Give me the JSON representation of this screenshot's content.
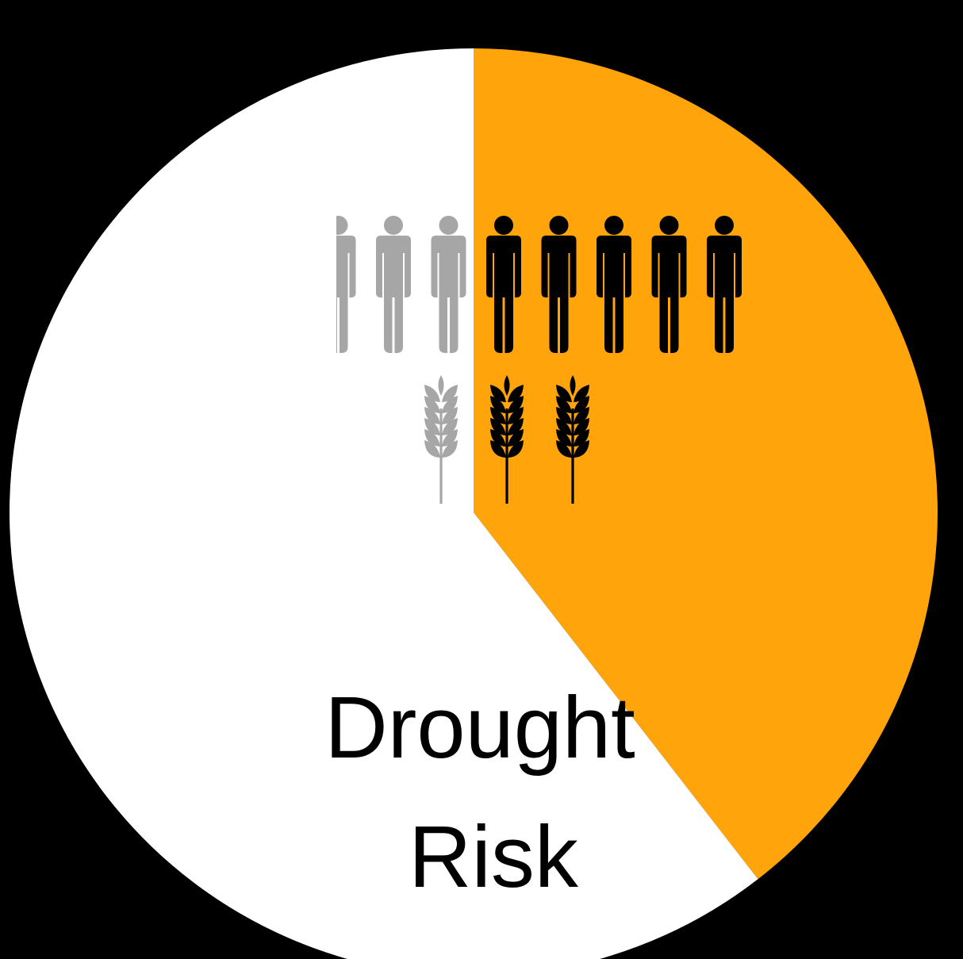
{
  "chart_data": {
    "type": "pie",
    "title_lines": [
      "Drought",
      "Risk"
    ],
    "slices": [
      {
        "value": 39.5,
        "color": "#FFA40B"
      },
      {
        "value": 60.5,
        "color": "#FFFFFF"
      }
    ],
    "people_icons": {
      "total": 7.2,
      "highlighted": 5,
      "highlight_color": "#000000",
      "muted_color": "#A6A6A6"
    },
    "wheat_icons": {
      "total": 3,
      "highlighted": 2,
      "highlight_color": "#000000",
      "muted_color": "#A6A6A6"
    }
  },
  "colors": {
    "background": "#000000",
    "text": "#000000"
  }
}
